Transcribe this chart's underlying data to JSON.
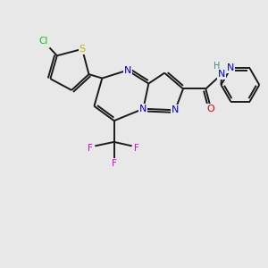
{
  "background_color": "#e8e8e8",
  "bond_color": "#1a1a1a",
  "atom_colors": {
    "N": "#0000dd",
    "S": "#bbbb00",
    "Cl": "#00cc00",
    "F": "#ee00ee",
    "O": "#dd0000",
    "H": "#448888",
    "C": "#1a1a1a"
  },
  "figsize": [
    3.0,
    3.0
  ],
  "dpi": 100
}
